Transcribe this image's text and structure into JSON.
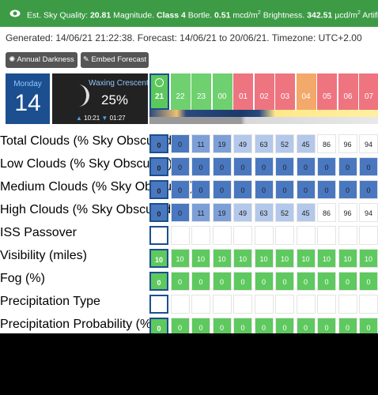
{
  "banner": {
    "l1": "Est. Sky Quality:",
    "v1": "20.81",
    "u1": "Magnitude.",
    "v2": "Class 4",
    "u2": "Bortle.",
    "v3": "0.51",
    "u3": "mcd/m",
    "s3": "2",
    "u3b": "Brightness.",
    "v4": "342.51",
    "u4": "µcd/m",
    "s4": "2",
    "u4b": "Artificial"
  },
  "generated": "Generated: 14/06/21 21:22:38. Forecast: 14/06/21 to 20/06/21. Timezone: UTC+2.00",
  "buttons": [
    "Annual Darkness",
    "Embed Forecast"
  ],
  "day": {
    "name": "Monday",
    "date": "14"
  },
  "moon": {
    "phase": "Waxing Crescent",
    "illumination": "25%",
    "rise": "10:21",
    "set": "01:27"
  },
  "hours": [
    "21",
    "22",
    "23",
    "00",
    "01",
    "02",
    "03",
    "04",
    "05",
    "06",
    "07"
  ],
  "hour_colors": [
    "#5cc85c",
    "#6fd06f",
    "#6fd06f",
    "#6fd06f",
    "#ee7480",
    "#ee7480",
    "#ee7480",
    "#f3a96a",
    "#ee7480",
    "#ee7480",
    "#ee7480"
  ],
  "rows": [
    {
      "label": "Total Clouds (% Sky Obscured)",
      "kind": "cloud",
      "values": [
        "0",
        "0",
        "11",
        "19",
        "49",
        "63",
        "52",
        "45",
        "86",
        "96",
        "94"
      ]
    },
    {
      "label": "Low Clouds (% Sky Obscured)",
      "kind": "cloud",
      "values": [
        "0",
        "0",
        "0",
        "0",
        "0",
        "0",
        "0",
        "0",
        "0",
        "0",
        "0"
      ]
    },
    {
      "label": "Medium Clouds (% Sky Obscured)",
      "kind": "cloud",
      "values": [
        "0",
        "0",
        "0",
        "0",
        "0",
        "0",
        "0",
        "0",
        "0",
        "0",
        "0"
      ]
    },
    {
      "label": "High Clouds (% Sky Obscured)",
      "kind": "cloud",
      "values": [
        "0",
        "0",
        "11",
        "19",
        "49",
        "63",
        "52",
        "45",
        "86",
        "96",
        "94"
      ]
    },
    {
      "label": "ISS Passover",
      "kind": "blank"
    },
    {
      "label": "Visibility (miles)",
      "kind": "good",
      "values": [
        "10",
        "10",
        "10",
        "10",
        "10",
        "10",
        "10",
        "10",
        "10",
        "10",
        "10"
      ]
    },
    {
      "label": "Fog (%)",
      "kind": "good",
      "values": [
        "0",
        "0",
        "0",
        "0",
        "0",
        "0",
        "0",
        "0",
        "0",
        "0",
        "0"
      ]
    },
    {
      "label": "Precipitation Type",
      "kind": "blank"
    },
    {
      "label": "Precipitation Probability (%)",
      "kind": "good",
      "values": [
        "0",
        "0",
        "0",
        "0",
        "0",
        "0",
        "0",
        "0",
        "0",
        "0",
        "0"
      ]
    }
  ]
}
